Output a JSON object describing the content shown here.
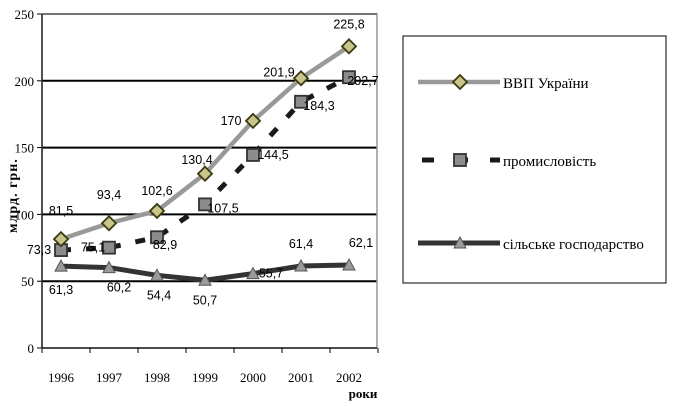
{
  "chart_data": {
    "type": "line",
    "x": [
      "1996",
      "1997",
      "1998",
      "1999",
      "2000",
      "2001",
      "2002"
    ],
    "ylim": [
      0,
      250
    ],
    "yticks": [
      "0",
      "50",
      "100",
      "150",
      "200",
      "250"
    ],
    "ylabel": "млрд. грн.",
    "xlabel": "роки",
    "grid": "horizontal",
    "legend": "right",
    "series": [
      {
        "name": "ВВП України",
        "values": [
          81.5,
          93.4,
          102.6,
          130.4,
          170,
          201.9,
          225.8
        ],
        "labels": [
          "81,5",
          "93,4",
          "102,6",
          "130,4",
          "170",
          "201,9",
          "225,8"
        ],
        "color": "#999999",
        "marker_color": "#c8c48a",
        "marker": "diamond",
        "line": "solid"
      },
      {
        "name": "промисловість",
        "values": [
          73.3,
          75.1,
          82.9,
          107.5,
          144.5,
          184.3,
          202.7
        ],
        "labels": [
          "73,3",
          "75,1",
          "82,9",
          "107,5",
          "144,5",
          "184,3",
          "202,7"
        ],
        "color": "#1a1a1a",
        "marker_color": "#8c8c8c",
        "marker": "square",
        "line": "dashed"
      },
      {
        "name": "сільське господарство",
        "values": [
          61.3,
          60.2,
          54.4,
          50.7,
          55.7,
          61.4,
          62.1
        ],
        "labels": [
          "61,3",
          "60,2",
          "54,4",
          "50,7",
          "55,7",
          "61,4",
          "62,1"
        ],
        "color": "#333333",
        "marker_color": "#9a9a9a",
        "marker": "triangle",
        "line": "solid"
      }
    ]
  }
}
